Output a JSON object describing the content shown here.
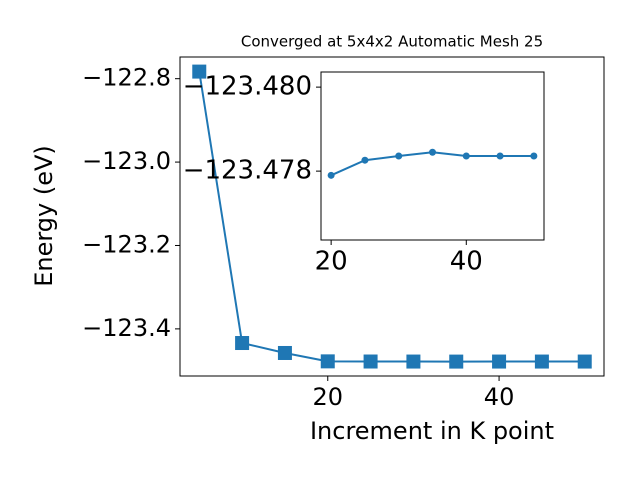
{
  "chart_data": [
    {
      "type": "line",
      "title": "Converged at 5x4x2 Automatic Mesh 25",
      "x_label": "Increment in K point",
      "y_label": "Energy (eV)",
      "x": [
        5,
        10,
        15,
        20,
        25,
        30,
        35,
        40,
        45,
        50
      ],
      "series": [
        {
          "color": "#1f77b4",
          "marker": "square",
          "values": [
            -122.783,
            -123.4339,
            -123.4578,
            -123.4779,
            -123.47826,
            -123.47836,
            -123.47845,
            -123.47836,
            -123.47836,
            -123.47836
          ]
        }
      ],
      "xlim": [
        2.75,
        52.25
      ],
      "xticks": [
        20,
        40
      ],
      "ylim": [
        -123.513,
        -122.748
      ],
      "yticks": [
        {
          "value": -122.8,
          "label": "−122.8"
        },
        {
          "value": -123.0,
          "label": "−123.0"
        },
        {
          "value": -123.2,
          "label": "−123.2"
        },
        {
          "value": -123.4,
          "label": "−123.4"
        }
      ]
    },
    {
      "type": "line",
      "x": [
        20,
        25,
        30,
        35,
        40,
        45,
        50
      ],
      "series": [
        {
          "color": "#1f77b4",
          "marker": "circle",
          "values": [
            -123.4779,
            -123.47826,
            -123.47836,
            -123.47845,
            -123.47836,
            -123.47836,
            -123.47836
          ]
        }
      ],
      "xlim": [
        18.5,
        51.5
      ],
      "xticks": [
        20,
        40
      ],
      "ylim": [
        -123.47636,
        -123.48036
      ],
      "yticks": [
        {
          "value": -123.48,
          "label": "−123.480"
        },
        {
          "value": -123.478,
          "label": "−123.478"
        }
      ]
    }
  ]
}
